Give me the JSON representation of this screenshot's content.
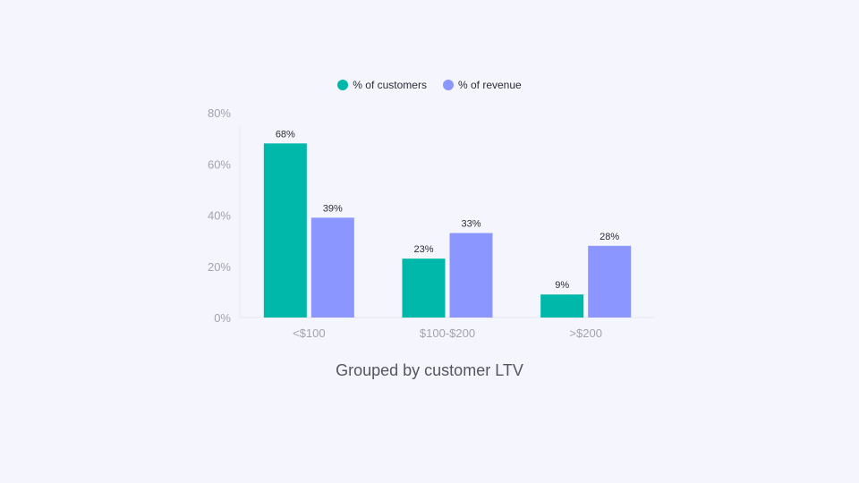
{
  "chart_data": {
    "type": "bar",
    "categories": [
      "<$100",
      "$100-$200",
      ">$200"
    ],
    "series": [
      {
        "name": "% of customers",
        "values": [
          68,
          23,
          9
        ],
        "color": "#00b8a9"
      },
      {
        "name": "% of revenue",
        "values": [
          39,
          33,
          28
        ],
        "color": "#8c96ff"
      }
    ],
    "ylim": [
      0,
      80
    ],
    "yticks": [
      0,
      20,
      40,
      60,
      80
    ],
    "tick_suffix": "%",
    "value_suffix": "%",
    "xlabel": "Grouped by customer LTV",
    "legend_position": "top-center",
    "grid": false
  }
}
